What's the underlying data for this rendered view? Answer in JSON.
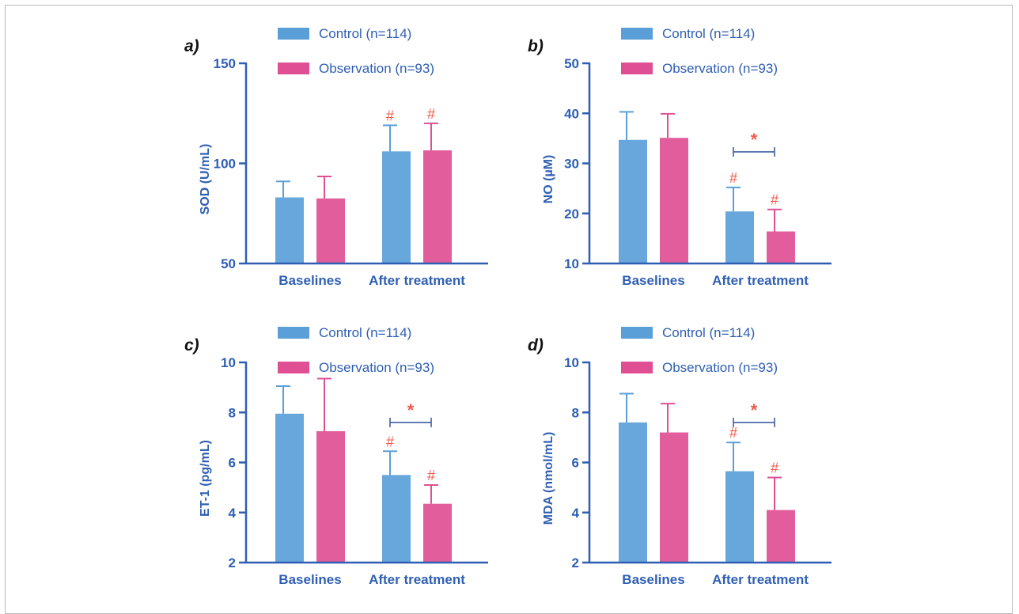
{
  "figure": {
    "panels": [
      {
        "label": "a)",
        "chart_data": {
          "type": "bar",
          "categories": [
            "Baselines",
            "After treatment"
          ],
          "series": [
            {
              "name": "Control (n=114)",
              "color": "#5b9fd8",
              "values": [
                83,
                106
              ],
              "errors": [
                8,
                13
              ],
              "marks": [
                "",
                "#"
              ]
            },
            {
              "name": "Observation (n=93)",
              "color": "#e04f93",
              "values": [
                82.5,
                106.5
              ],
              "errors": [
                11,
                13.5
              ],
              "marks": [
                "",
                "#"
              ]
            }
          ],
          "title": "",
          "xlabel": "",
          "ylabel": "SOD (U/mL)",
          "ylim": [
            50,
            150
          ],
          "yticks": [
            "50",
            "100",
            "150"
          ],
          "significance": null,
          "grid": false,
          "legend_position": "top"
        }
      },
      {
        "label": "b)",
        "chart_data": {
          "type": "bar",
          "categories": [
            "Baselines",
            "After treatment"
          ],
          "series": [
            {
              "name": "Control (n=114)",
              "color": "#5b9fd8",
              "values": [
                34.7,
                20.4
              ],
              "errors": [
                5.6,
                4.8
              ],
              "marks": [
                "",
                "#"
              ]
            },
            {
              "name": "Observation (n=93)",
              "color": "#e04f93",
              "values": [
                35.1,
                16.4
              ],
              "errors": [
                4.8,
                4.4
              ],
              "marks": [
                "",
                "#"
              ]
            }
          ],
          "title": "",
          "xlabel": "",
          "ylabel": "NO (µM)",
          "ylim": [
            10,
            50
          ],
          "yticks": [
            "10",
            "20",
            "30",
            "40",
            "50"
          ],
          "significance": {
            "category": 1,
            "symbol": "*",
            "level": 32.3
          },
          "grid": false,
          "legend_position": "top"
        }
      },
      {
        "label": "c)",
        "chart_data": {
          "type": "bar",
          "categories": [
            "Baselines",
            "After treatment"
          ],
          "series": [
            {
              "name": "Control (n=114)",
              "color": "#5b9fd8",
              "values": [
                7.95,
                5.5
              ],
              "errors": [
                1.1,
                0.95
              ],
              "marks": [
                "",
                "#"
              ]
            },
            {
              "name": "Observation (n=93)",
              "color": "#e04f93",
              "values": [
                7.25,
                4.35
              ],
              "errors": [
                2.1,
                0.75
              ],
              "marks": [
                "",
                "#"
              ]
            }
          ],
          "title": "",
          "xlabel": "",
          "ylabel": "ET-1 (pg/mL)",
          "ylim": [
            2,
            10
          ],
          "yticks": [
            "2",
            "4",
            "6",
            "8",
            "10"
          ],
          "significance": {
            "category": 1,
            "symbol": "*",
            "level": 7.6
          },
          "grid": false,
          "legend_position": "top"
        }
      },
      {
        "label": "d)",
        "chart_data": {
          "type": "bar",
          "categories": [
            "Baselines",
            "After treatment"
          ],
          "series": [
            {
              "name": "Control (n=114)",
              "color": "#5b9fd8",
              "values": [
                7.6,
                5.65
              ],
              "errors": [
                1.15,
                1.15
              ],
              "marks": [
                "",
                "#"
              ]
            },
            {
              "name": "Observation (n=93)",
              "color": "#e04f93",
              "values": [
                7.2,
                4.1
              ],
              "errors": [
                1.15,
                1.3
              ],
              "marks": [
                "",
                "#"
              ]
            }
          ],
          "title": "",
          "xlabel": "",
          "ylabel": "MDA (nmol/mL)",
          "ylim": [
            2,
            10
          ],
          "yticks": [
            "2",
            "4",
            "6",
            "8",
            "10"
          ],
          "significance": {
            "category": 1,
            "symbol": "*",
            "level": 7.6
          },
          "grid": false,
          "legend_position": "top"
        }
      }
    ],
    "colors": {
      "axis": "#2f5fb3",
      "mark": "#f05a4a",
      "bracket": "#3f5f9f"
    }
  }
}
